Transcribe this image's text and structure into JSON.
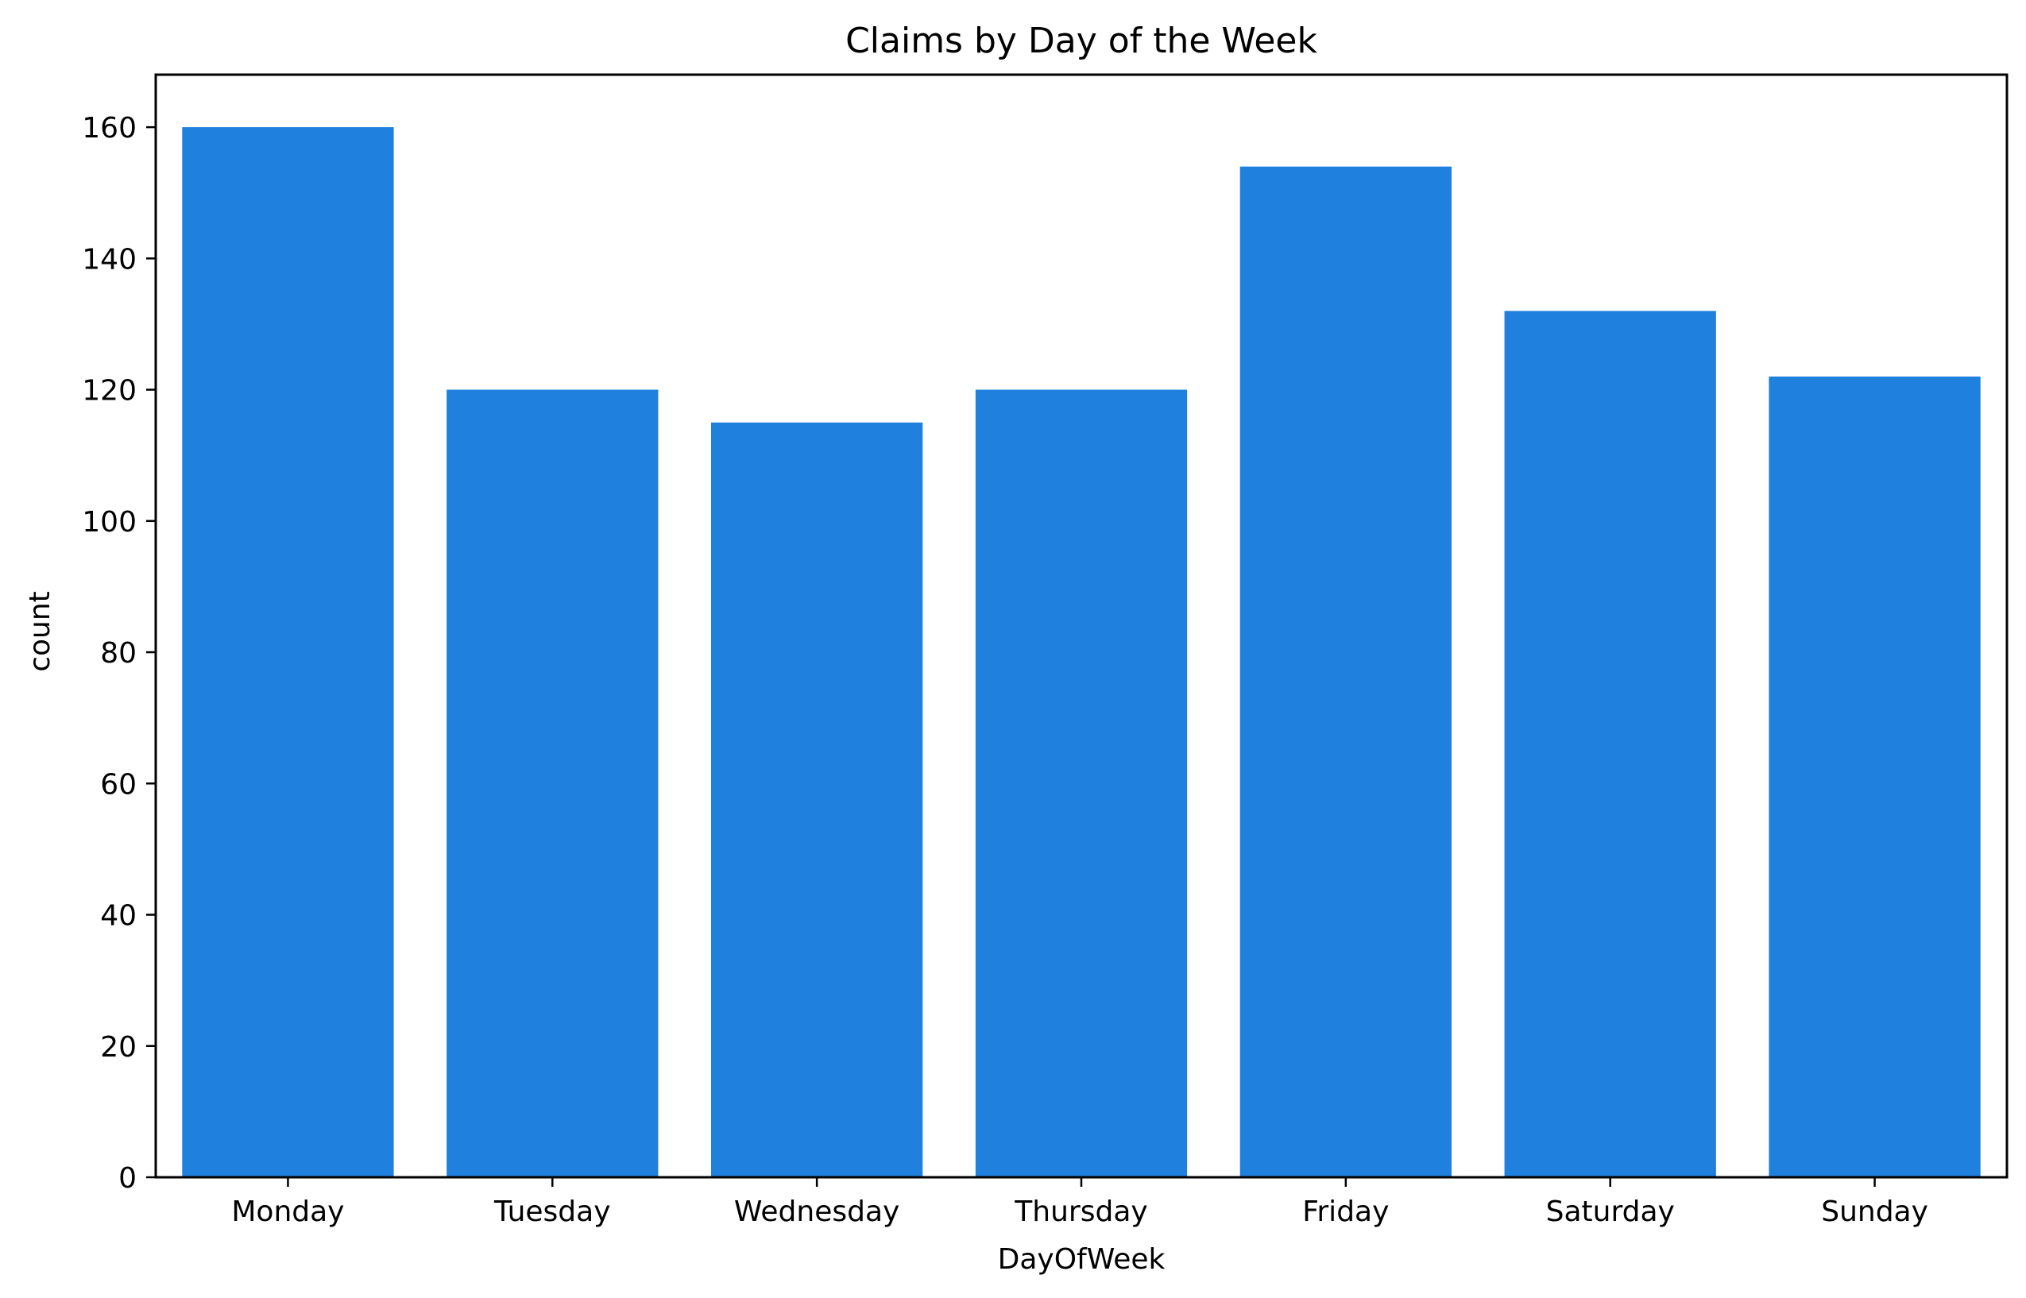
{
  "chart_data": {
    "type": "bar",
    "title": "Claims by Day of the Week",
    "xlabel": "DayOfWeek",
    "ylabel": "count",
    "categories": [
      "Monday",
      "Tuesday",
      "Wednesday",
      "Thursday",
      "Friday",
      "Saturday",
      "Sunday"
    ],
    "values": [
      160,
      120,
      115,
      120,
      154,
      132,
      122
    ],
    "ylim": [
      0,
      168
    ],
    "yticks": [
      0,
      20,
      40,
      60,
      80,
      100,
      120,
      140,
      160
    ],
    "bar_color": "#1f80de",
    "grid": false,
    "legend": "none"
  }
}
